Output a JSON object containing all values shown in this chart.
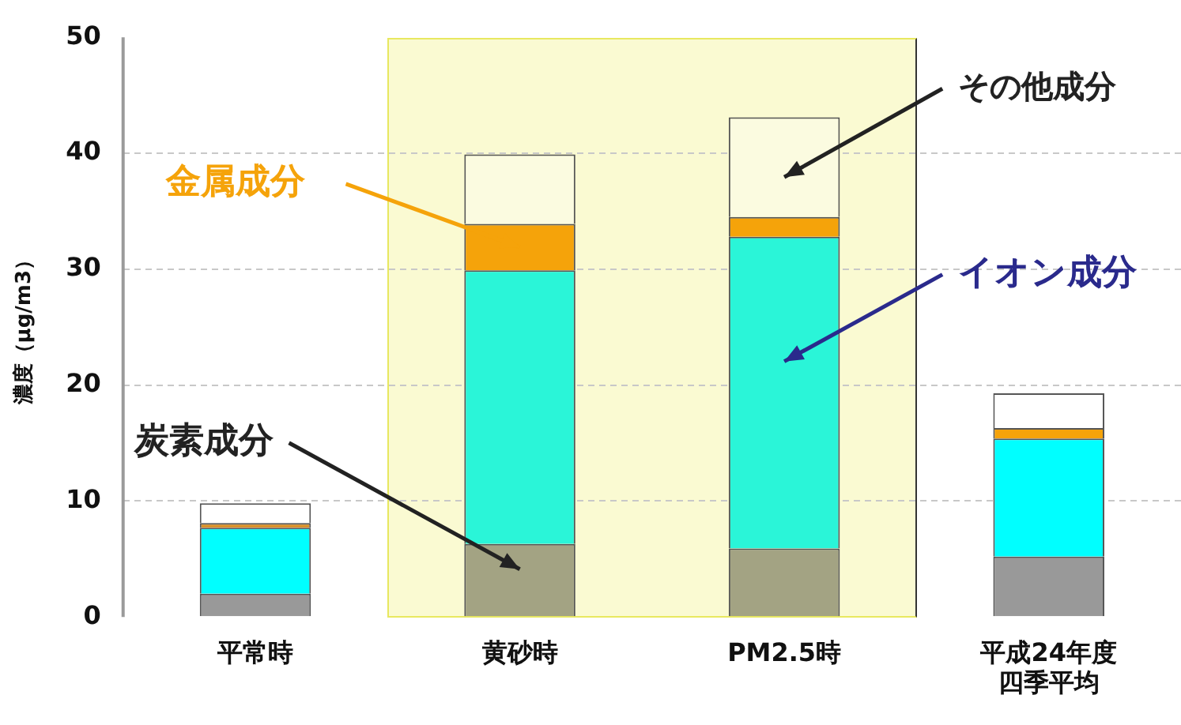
{
  "chart_data": {
    "type": "bar",
    "stacked": true,
    "ylabel": "濃度（μg/m3）",
    "categories": [
      "平常時",
      "黄砂時",
      "PM2.5時",
      "平成24年度四季平均"
    ],
    "series": [
      {
        "name": "炭素成分",
        "colors": [
          "#999999",
          "#a3a383",
          "#a3a383",
          "#999999"
        ],
        "values": [
          2.0,
          6.3,
          5.9,
          5.2
        ]
      },
      {
        "name": "イオン成分",
        "colors": [
          "#00ffff",
          "#2af5d8",
          "#2af5d8",
          "#00ffff"
        ],
        "values": [
          5.7,
          23.6,
          26.9,
          10.2
        ]
      },
      {
        "name": "金属成分",
        "colors": [
          "#d9902a",
          "#f5a30a",
          "#f5a30a",
          "#f5a30a"
        ],
        "values": [
          0.4,
          4.0,
          1.7,
          0.9
        ]
      },
      {
        "name": "その他成分",
        "colors": [
          "#ffffff",
          "#fbfbe0",
          "#fbfbe0",
          "#ffffff"
        ],
        "values": [
          1.7,
          6.0,
          8.6,
          3.0
        ]
      }
    ],
    "ylim": [
      0,
      50
    ],
    "yticks": [
      0,
      10,
      20,
      30,
      40,
      50
    ],
    "grid": "y",
    "legend": false
  }
}
